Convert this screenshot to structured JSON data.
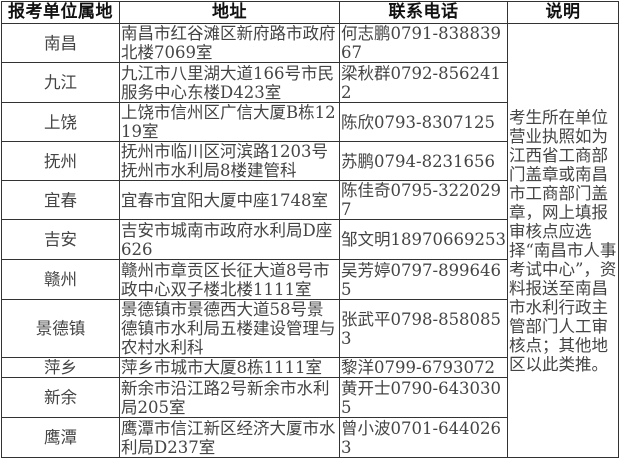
{
  "headers": [
    "报考单位属地",
    "地址",
    "联系电话",
    "说明"
  ],
  "rows": [
    {
      "city": "南昌",
      "address": "南昌市红谷滩区新府路市政府北楼7069室",
      "contact": "何志鹏0791-83883967"
    },
    {
      "city": "九江",
      "address": "九江市八里湖大道166号市民服务中心东楼D423室",
      "contact": "梁秋群0792-8562412"
    },
    {
      "city": "上饶",
      "address": "上饶市信州区广信大厦B栋1219室",
      "contact": "陈欣0793-8307125"
    },
    {
      "city": "抚州",
      "address": "抚州市临川区河滨路1203号抚州市水利局8楼建管科",
      "contact": "苏鹏0794-8231656"
    },
    {
      "city": "宜春",
      "address": "宜春市宜阳大厦中座1748室",
      "contact": "陈佳奇0795-3220297"
    },
    {
      "city": "吉安",
      "address": "吉安市城南市政府水利局D座626",
      "contact": "邹文明18970669253"
    },
    {
      "city": "赣州",
      "address": "赣州市章贡区长征大道8号市政中心双子楼北楼1111室",
      "contact": "吴芳婷0797-8996465"
    },
    {
      "city": "景德镇",
      "address": "景德镇市景德西大道58号景德镇市水利局五楼建设管理与农村水利科",
      "contact": "张武平0798-8580853"
    },
    {
      "city": "萍乡",
      "address": "萍乡市城市大厦8栋1111室",
      "contact": "黎洋0799-6793072"
    },
    {
      "city": "新余",
      "address": "新余市沿江路2号新余市水利局205室",
      "contact": "黄开士0790-6430305"
    },
    {
      "city": "鹰潭",
      "address": "鹰潭市信江新区经济大厦市水利局D237室",
      "contact": "曾小波0701-6440263"
    }
  ],
  "note": "考生所在单位营业执照如为江西省工商部门盖章或南昌市工商部门盖章，网上填报审核点应选择“南昌市人事考试中心”，资料报送至南昌市水利行政主管部门人工审核点；其他地区以此类推。"
}
